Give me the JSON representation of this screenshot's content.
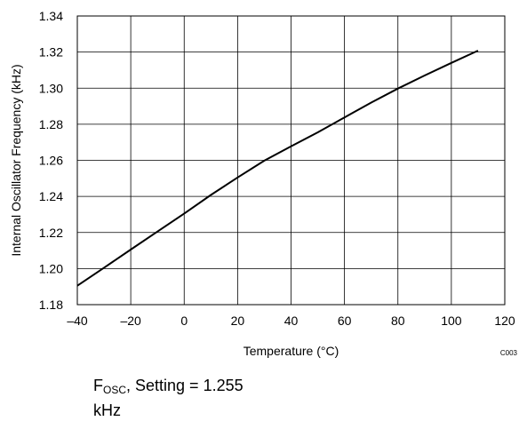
{
  "chart_data": {
    "type": "line",
    "title": "",
    "xlabel": "Temperature (°C)",
    "ylabel": "Internal Oscillator Frequency (kHz)",
    "xlim": [
      -40,
      120
    ],
    "ylim": [
      1.18,
      1.34
    ],
    "x_ticks": [
      "–40",
      "–20",
      "0",
      "20",
      "40",
      "60",
      "80",
      "100",
      "120"
    ],
    "y_ticks": [
      "1.18",
      "1.20",
      "1.22",
      "1.24",
      "1.26",
      "1.28",
      "1.30",
      "1.32",
      "1.34"
    ],
    "grid": true,
    "series": [
      {
        "x": [
          -40,
          -30,
          -20,
          -10,
          0,
          10,
          20,
          30,
          40,
          50,
          60,
          70,
          80,
          90,
          100,
          110
        ],
        "y": [
          1.1905,
          1.2005,
          1.2105,
          1.2205,
          1.2305,
          1.2408,
          1.2505,
          1.2598,
          1.2678,
          1.2755,
          1.2838,
          1.292,
          1.2998,
          1.307,
          1.314,
          1.3208
        ]
      }
    ],
    "figure_code": "C003"
  },
  "caption": {
    "symbol": "F",
    "subscript": "OSC",
    "rest": ", Setting = 1.255",
    "unit": "kHz"
  }
}
